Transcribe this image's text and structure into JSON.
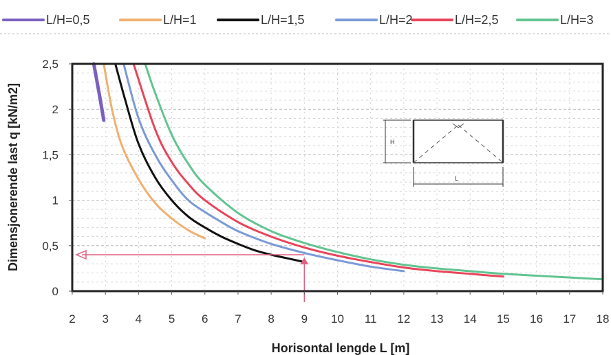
{
  "chart_data": {
    "type": "line",
    "title": "",
    "xlabel": "Horisontal lengde L [m]",
    "ylabel": "Dimensjonerende last q [kN/m2]",
    "xlim": [
      2,
      18
    ],
    "ylim": [
      0,
      2.5
    ],
    "x_ticks": [
      "2",
      "3",
      "4",
      "5",
      "6",
      "7",
      "8",
      "9",
      "10",
      "11",
      "12",
      "13",
      "14",
      "15",
      "16",
      "17",
      "18"
    ],
    "y_ticks": [
      "0",
      "0,5",
      "1",
      "1,5",
      "2",
      "2,5"
    ],
    "grid": true,
    "legend_position": "top",
    "series": [
      {
        "name": "L/H=0,5",
        "color": "#7b5fc0",
        "points": [
          [
            2.65,
            2.5
          ],
          [
            2.8,
            2.2
          ],
          [
            2.95,
            1.88
          ]
        ]
      },
      {
        "name": "L/H=1",
        "color": "#f0b070",
        "points": [
          [
            2.95,
            2.5
          ],
          [
            3.2,
            2.0
          ],
          [
            3.5,
            1.6
          ],
          [
            4.0,
            1.23
          ],
          [
            4.5,
            0.97
          ],
          [
            5.0,
            0.8
          ],
          [
            5.5,
            0.67
          ],
          [
            6.0,
            0.58
          ]
        ]
      },
      {
        "name": "L/H=1,5",
        "color": "#111111",
        "points": [
          [
            3.3,
            2.5
          ],
          [
            3.6,
            2.1
          ],
          [
            4.0,
            1.62
          ],
          [
            4.5,
            1.25
          ],
          [
            5.0,
            1.0
          ],
          [
            5.5,
            0.82
          ],
          [
            6.0,
            0.7
          ],
          [
            6.5,
            0.6
          ],
          [
            7.0,
            0.52
          ],
          [
            7.5,
            0.45
          ],
          [
            8.0,
            0.4
          ],
          [
            8.5,
            0.36
          ],
          [
            9.0,
            0.32
          ]
        ]
      },
      {
        "name": "L/H=2",
        "color": "#7a9ad6",
        "points": [
          [
            3.55,
            2.5
          ],
          [
            4.0,
            1.9
          ],
          [
            4.5,
            1.5
          ],
          [
            5.0,
            1.22
          ],
          [
            5.5,
            1.0
          ],
          [
            6.0,
            0.87
          ],
          [
            6.5,
            0.76
          ],
          [
            7.0,
            0.66
          ],
          [
            8.0,
            0.52
          ],
          [
            9.0,
            0.42
          ],
          [
            10.0,
            0.34
          ],
          [
            11.0,
            0.27
          ],
          [
            12.0,
            0.22
          ]
        ]
      },
      {
        "name": "L/H=2,5",
        "color": "#e8455a",
        "points": [
          [
            3.85,
            2.5
          ],
          [
            4.5,
            1.78
          ],
          [
            5.0,
            1.42
          ],
          [
            5.5,
            1.18
          ],
          [
            6.0,
            1.0
          ],
          [
            7.0,
            0.76
          ],
          [
            8.0,
            0.6
          ],
          [
            9.0,
            0.48
          ],
          [
            10.0,
            0.39
          ],
          [
            11.0,
            0.32
          ],
          [
            12.0,
            0.26
          ],
          [
            13.0,
            0.22
          ],
          [
            14.0,
            0.19
          ],
          [
            15.0,
            0.16
          ]
        ]
      },
      {
        "name": "L/H=3",
        "color": "#62c490",
        "points": [
          [
            4.2,
            2.5
          ],
          [
            4.5,
            2.18
          ],
          [
            5.0,
            1.72
          ],
          [
            5.5,
            1.4
          ],
          [
            6.0,
            1.17
          ],
          [
            7.0,
            0.86
          ],
          [
            8.0,
            0.66
          ],
          [
            9.0,
            0.53
          ],
          [
            10.0,
            0.43
          ],
          [
            11.0,
            0.35
          ],
          [
            12.0,
            0.29
          ],
          [
            13.0,
            0.25
          ],
          [
            14.0,
            0.22
          ],
          [
            15.0,
            0.19
          ],
          [
            16.0,
            0.17
          ],
          [
            17.0,
            0.15
          ],
          [
            18.0,
            0.13
          ]
        ]
      }
    ],
    "annotation": {
      "color": "#e06080",
      "x": 9,
      "y": 0.4
    },
    "inset_diagram": {
      "height_label": "H",
      "length_label": "L"
    }
  }
}
